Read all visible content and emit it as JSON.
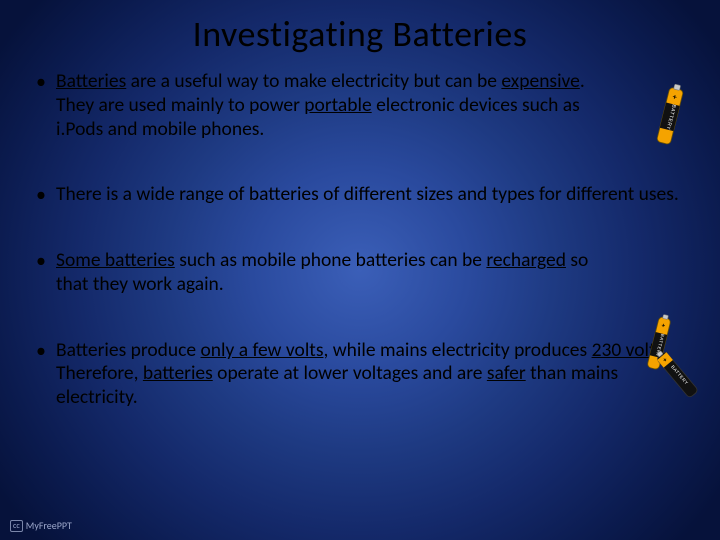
{
  "title": "Investigating Batteries",
  "bullets": [
    {
      "html": "<span class='u'>Batteries</span> are a useful way to make electricity but can be <span class='u'>expensive</span>. They are used mainly to power <span class='u'>portable</span> electronic devices such as i.Pods and mobile phones."
    },
    {
      "html": "There is a wide range of batteries of different sizes and types for different uses."
    },
    {
      "html": "<span class='u'>Some batteries</span> such as mobile phone batteries can be <span class='u'>recharged</span> so that they work again."
    },
    {
      "html": "Batteries produce <span class='u'>only a few volts</span>, while mains electricity produces <span class='u'>230 volts</span>. Therefore, <span class='u'>batteries</span> operate at lower voltages and are <span class='u'>safer</span> than mains electricity."
    }
  ],
  "attribution": {
    "cc": "cc",
    "text": "MyFreePPT"
  },
  "colors": {
    "bg_center": "#3b5fb8",
    "bg_edge": "#06123b",
    "text": "#000000",
    "attribution": "#9aa5c8"
  },
  "battery_graphic": {
    "body_color": "#f5a300",
    "tip_color": "#d0d0d0",
    "label": "BATTERY",
    "plus": "+"
  }
}
